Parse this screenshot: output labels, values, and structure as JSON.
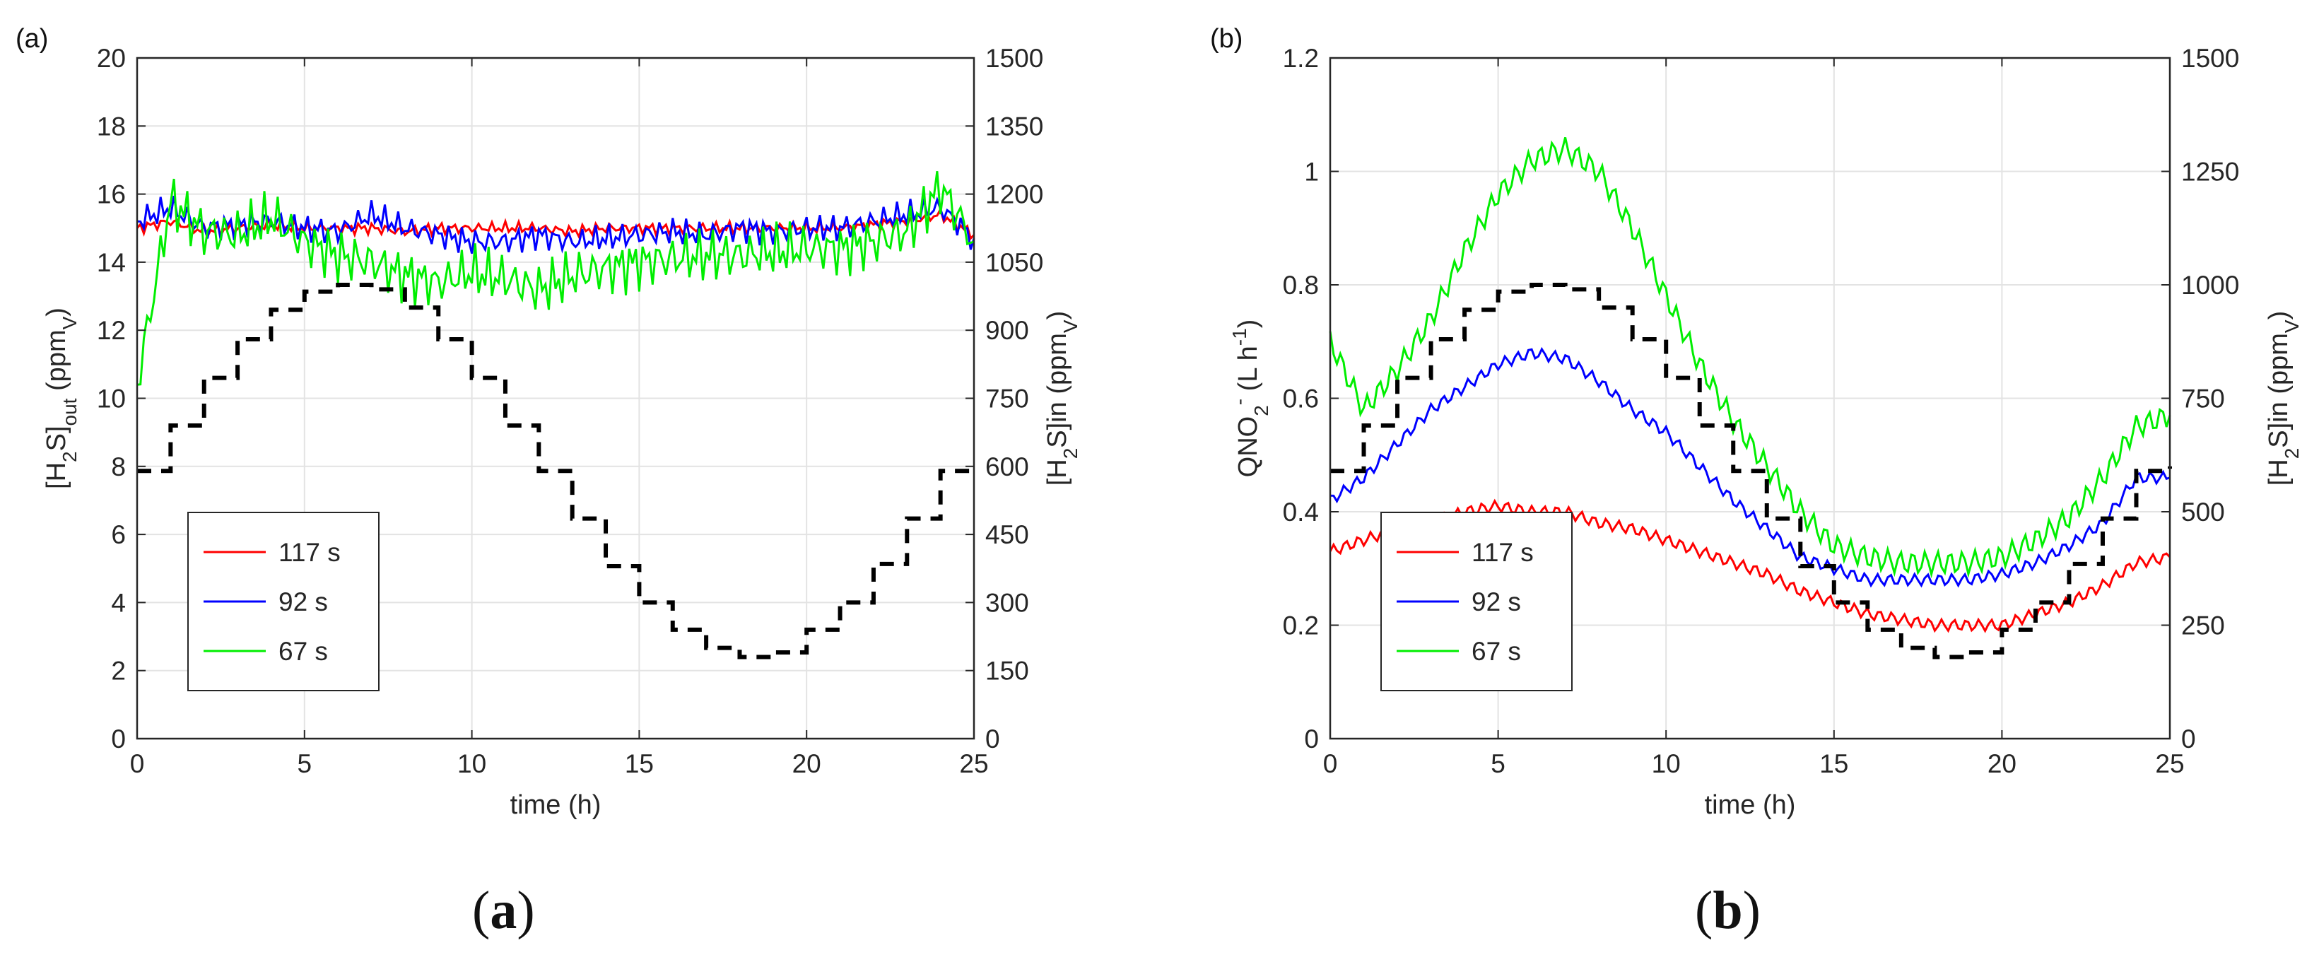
{
  "captions": {
    "a": "a",
    "b": "b"
  },
  "chart_data": [
    {
      "panel": "(a)",
      "type": "line",
      "xlabel": "time (h)",
      "ylabel_left": "[H2S]out (ppmV)",
      "ylabel_right": "[H2S]in (ppmV)",
      "x_ticks": [
        "0",
        "5",
        "10",
        "15",
        "20",
        "25"
      ],
      "y_left_ticks": [
        "0",
        "2",
        "4",
        "6",
        "8",
        "10",
        "12",
        "14",
        "16",
        "18",
        "20"
      ],
      "y_right_ticks": [
        "0",
        "150",
        "300",
        "450",
        "600",
        "750",
        "900",
        "1050",
        "1200",
        "1350",
        "1500"
      ],
      "xlim": [
        0,
        25
      ],
      "ylim_left": [
        0,
        20
      ],
      "ylim_right": [
        0,
        1500
      ],
      "grid": true,
      "legend_position": "bottom-left",
      "series": [
        {
          "name": "117 s",
          "color": "#ff0000",
          "axis": "left",
          "x": [
            0,
            1,
            2,
            3,
            4,
            5,
            6,
            7,
            8,
            9,
            10,
            11,
            12,
            13,
            14,
            15,
            16,
            17,
            18,
            19,
            20,
            21,
            22,
            23,
            24,
            25
          ],
          "y": [
            15.0,
            15.2,
            14.9,
            15.0,
            15.1,
            15.0,
            15.0,
            15.0,
            14.9,
            15.0,
            15.0,
            15.0,
            15.0,
            14.9,
            15.0,
            15.0,
            15.0,
            15.0,
            15.0,
            15.0,
            15.0,
            15.0,
            15.1,
            15.2,
            15.4,
            14.8
          ]
        },
        {
          "name": "92 s",
          "color": "#0000ff",
          "axis": "left",
          "x": [
            0,
            1,
            2,
            3,
            4,
            5,
            6,
            7,
            8,
            9,
            10,
            11,
            12,
            13,
            14,
            15,
            16,
            17,
            18,
            19,
            20,
            21,
            22,
            23,
            24,
            25
          ],
          "y": [
            15.2,
            15.6,
            15.0,
            15.1,
            15.2,
            15.0,
            14.9,
            15.4,
            15.0,
            14.8,
            14.6,
            14.6,
            14.8,
            14.6,
            14.7,
            14.8,
            14.9,
            14.8,
            15.0,
            14.9,
            15.0,
            15.0,
            15.2,
            15.4,
            15.6,
            14.7
          ]
        },
        {
          "name": "67 s",
          "color": "#00ee00",
          "axis": "left",
          "x": [
            0,
            1,
            2,
            3,
            4,
            5,
            6,
            7,
            8,
            9,
            10,
            11,
            12,
            13,
            14,
            15,
            16,
            17,
            18,
            19,
            20,
            21,
            22,
            23,
            24,
            25
          ],
          "y": [
            10.4,
            15.8,
            14.9,
            14.8,
            15.3,
            14.6,
            14.2,
            14.0,
            13.6,
            13.4,
            13.7,
            13.5,
            13.2,
            13.6,
            13.8,
            14.0,
            14.1,
            14.2,
            14.2,
            14.3,
            14.4,
            14.4,
            14.6,
            14.9,
            16.2,
            14.6
          ]
        },
        {
          "name": "[H2S]in",
          "color": "#000000",
          "axis": "right",
          "style": "dashed-step",
          "x": [
            0,
            1,
            2,
            3,
            4,
            5,
            6,
            7,
            8,
            9,
            10,
            11,
            12,
            13,
            14,
            15,
            16,
            17,
            18,
            19,
            20,
            21,
            22,
            23,
            24,
            25
          ],
          "y": [
            590,
            690,
            795,
            880,
            945,
            985,
            1000,
            990,
            950,
            880,
            795,
            690,
            590,
            485,
            380,
            300,
            240,
            200,
            180,
            190,
            240,
            300,
            385,
            485,
            590,
            600
          ]
        }
      ]
    },
    {
      "panel": "(b)",
      "type": "line",
      "xlabel": "time (h)",
      "ylabel_left": "QNO2- (L h-1)",
      "ylabel_right": "[H2S]in (ppmV)",
      "x_ticks": [
        "0",
        "5",
        "10",
        "15",
        "20",
        "25"
      ],
      "y_left_ticks": [
        "0",
        "0.2",
        "0.4",
        "0.6",
        "0.8",
        "1",
        "1.2"
      ],
      "y_right_ticks": [
        "0",
        "250",
        "500",
        "750",
        "1000",
        "1250",
        "1500"
      ],
      "xlim": [
        0,
        25
      ],
      "ylim_left": [
        0,
        1.2
      ],
      "ylim_right": [
        0,
        1500
      ],
      "grid": true,
      "legend_position": "bottom-left",
      "series": [
        {
          "name": "117 s",
          "color": "#ff0000",
          "axis": "left",
          "x": [
            0,
            1,
            2,
            3,
            4,
            5,
            6,
            7,
            8,
            9,
            10,
            11,
            12,
            13,
            14,
            15,
            16,
            17,
            18,
            19,
            20,
            21,
            22,
            23,
            24,
            25
          ],
          "y": [
            0.33,
            0.35,
            0.37,
            0.38,
            0.4,
            0.41,
            0.4,
            0.4,
            0.38,
            0.37,
            0.35,
            0.33,
            0.31,
            0.29,
            0.26,
            0.24,
            0.22,
            0.21,
            0.2,
            0.2,
            0.2,
            0.22,
            0.24,
            0.27,
            0.31,
            0.32
          ]
        },
        {
          "name": "92 s",
          "color": "#0000ff",
          "axis": "left",
          "x": [
            0,
            1,
            2,
            3,
            4,
            5,
            6,
            7,
            8,
            9,
            10,
            11,
            12,
            13,
            14,
            15,
            16,
            17,
            18,
            19,
            20,
            21,
            22,
            23,
            24,
            25
          ],
          "y": [
            0.42,
            0.46,
            0.52,
            0.58,
            0.62,
            0.66,
            0.68,
            0.67,
            0.63,
            0.58,
            0.54,
            0.48,
            0.42,
            0.37,
            0.32,
            0.3,
            0.28,
            0.28,
            0.28,
            0.28,
            0.29,
            0.31,
            0.34,
            0.38,
            0.46,
            0.46
          ]
        },
        {
          "name": "67 s",
          "color": "#00ee00",
          "axis": "left",
          "x": [
            0,
            1,
            2,
            3,
            4,
            5,
            6,
            7,
            8,
            9,
            10,
            11,
            12,
            13,
            14,
            15,
            16,
            17,
            18,
            19,
            20,
            21,
            22,
            23,
            24,
            25
          ],
          "y": [
            0.7,
            0.58,
            0.65,
            0.74,
            0.86,
            0.96,
            1.02,
            1.04,
            1.0,
            0.9,
            0.78,
            0.66,
            0.56,
            0.48,
            0.4,
            0.34,
            0.32,
            0.31,
            0.31,
            0.31,
            0.32,
            0.35,
            0.39,
            0.46,
            0.55,
            0.57
          ]
        },
        {
          "name": "[H2S]in",
          "color": "#000000",
          "axis": "right",
          "style": "dashed-step",
          "x": [
            0,
            1,
            2,
            3,
            4,
            5,
            6,
            7,
            8,
            9,
            10,
            11,
            12,
            13,
            14,
            15,
            16,
            17,
            18,
            19,
            20,
            21,
            22,
            23,
            24,
            25
          ],
          "y": [
            590,
            690,
            795,
            880,
            945,
            985,
            1000,
            990,
            950,
            880,
            795,
            690,
            590,
            485,
            380,
            300,
            240,
            200,
            180,
            190,
            240,
            300,
            385,
            485,
            590,
            600
          ]
        }
      ]
    }
  ]
}
